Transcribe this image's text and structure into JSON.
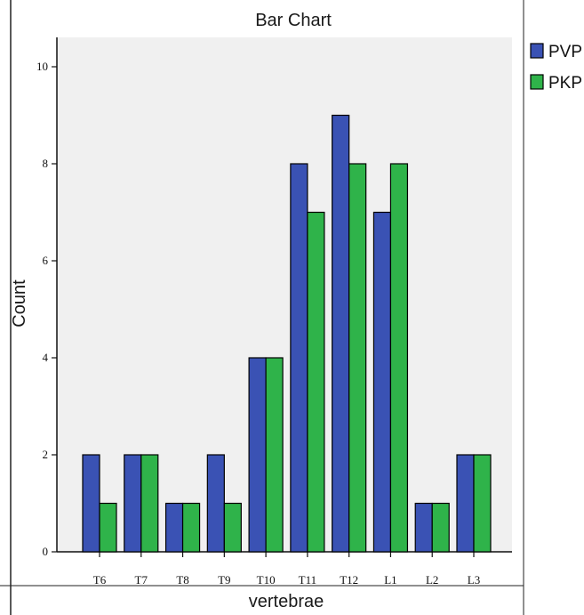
{
  "chart_data": {
    "type": "bar",
    "title": "Bar Chart",
    "xlabel": "vertebrae",
    "ylabel": "Count",
    "categories": [
      "T6",
      "T7",
      "T8",
      "T9",
      "T10",
      "T11",
      "T12",
      "L1",
      "L2",
      "L3"
    ],
    "series": [
      {
        "name": "PVP",
        "color": "#3a52b4",
        "values": [
          2,
          2,
          1,
          2,
          4,
          8,
          9,
          7,
          1,
          2
        ]
      },
      {
        "name": "PKP",
        "color": "#2fb34a",
        "values": [
          1,
          2,
          1,
          1,
          4,
          7,
          8,
          8,
          1,
          2
        ]
      }
    ],
    "ylim": [
      0,
      10
    ],
    "yticks": [
      0,
      2,
      4,
      6,
      8,
      10
    ],
    "grid": false,
    "legend_position": "top-right",
    "plot_background": "#f0f0f0"
  }
}
